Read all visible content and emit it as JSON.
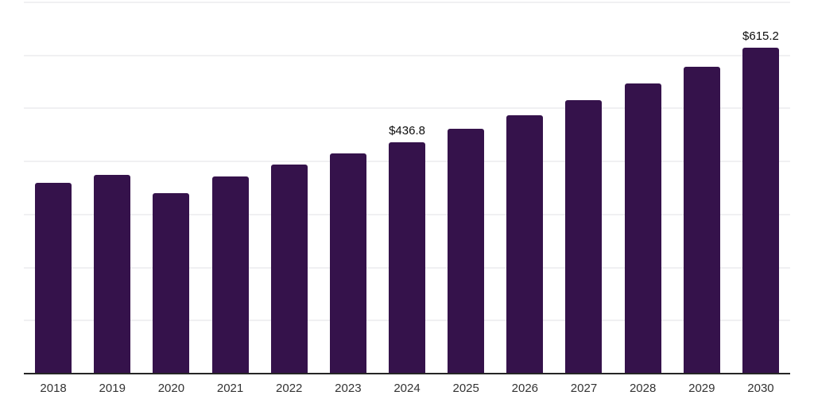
{
  "chart_data": {
    "type": "bar",
    "categories": [
      "2018",
      "2019",
      "2020",
      "2021",
      "2022",
      "2023",
      "2024",
      "2025",
      "2026",
      "2027",
      "2028",
      "2029",
      "2030"
    ],
    "values": [
      359.6,
      374.5,
      340.2,
      371.5,
      393.9,
      414.8,
      436.8,
      461.0,
      487.9,
      516.2,
      547.6,
      578.9,
      615.2
    ],
    "value_labels": [
      "",
      "",
      "",
      "",
      "",
      "",
      "$436.8",
      "",
      "",
      "",
      "",
      "",
      "$615.2"
    ],
    "xlabel": "",
    "ylabel": "",
    "ylim": [
      0,
      700
    ],
    "gridline_step": 100,
    "grid": "horizontal",
    "legend_position": "none",
    "colors": {
      "bar": "#35124B",
      "gridline": "#f0f0f2",
      "axis_line": "#262626",
      "tick_label": "#333333",
      "value_label": "#0d0d0d",
      "background": "#ffffff"
    }
  }
}
